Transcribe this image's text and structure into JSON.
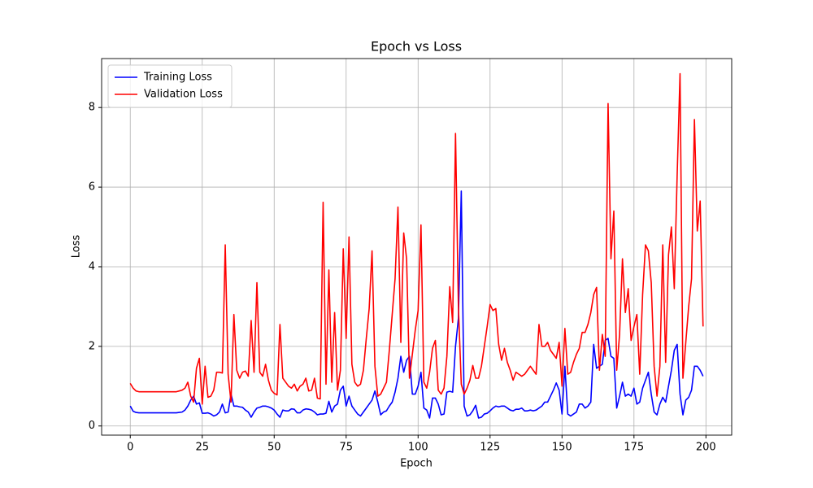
{
  "chart_data": {
    "type": "line",
    "title": "Epoch vs Loss",
    "xlabel": "Epoch",
    "ylabel": "Loss",
    "x": [
      0,
      1,
      2,
      3,
      4,
      5,
      6,
      7,
      8,
      9,
      10,
      11,
      12,
      13,
      14,
      15,
      16,
      17,
      18,
      19,
      20,
      21,
      22,
      23,
      24,
      25,
      26,
      27,
      28,
      29,
      30,
      31,
      32,
      33,
      34,
      35,
      36,
      37,
      38,
      39,
      40,
      41,
      42,
      43,
      44,
      45,
      46,
      47,
      48,
      49,
      50,
      51,
      52,
      53,
      54,
      55,
      56,
      57,
      58,
      59,
      60,
      61,
      62,
      63,
      64,
      65,
      66,
      67,
      68,
      69,
      70,
      71,
      72,
      73,
      74,
      75,
      76,
      77,
      78,
      79,
      80,
      81,
      82,
      83,
      84,
      85,
      86,
      87,
      88,
      89,
      90,
      91,
      92,
      93,
      94,
      95,
      96,
      97,
      98,
      99,
      100,
      101,
      102,
      103,
      104,
      105,
      106,
      107,
      108,
      109,
      110,
      111,
      112,
      113,
      114,
      115,
      116,
      117,
      118,
      119,
      120,
      121,
      122,
      123,
      124,
      125,
      126,
      127,
      128,
      129,
      130,
      131,
      132,
      133,
      134,
      135,
      136,
      137,
      138,
      139,
      140,
      141,
      142,
      143,
      144,
      145,
      146,
      147,
      148,
      149,
      150,
      151,
      152,
      153,
      154,
      155,
      156,
      157,
      158,
      159,
      160,
      161,
      162,
      163,
      164,
      165,
      166,
      167,
      168,
      169,
      170,
      171,
      172,
      173,
      174,
      175,
      176,
      177,
      178,
      179,
      180,
      181,
      182,
      183,
      184,
      185,
      186,
      187,
      188,
      189,
      190,
      191,
      192,
      193,
      194,
      195,
      196,
      197,
      198,
      199
    ],
    "series": [
      {
        "name": "Training Loss",
        "color": "#0000ff",
        "values": [
          0.5,
          0.37,
          0.34,
          0.33,
          0.33,
          0.33,
          0.33,
          0.33,
          0.33,
          0.33,
          0.33,
          0.33,
          0.33,
          0.33,
          0.33,
          0.33,
          0.33,
          0.34,
          0.35,
          0.4,
          0.5,
          0.65,
          0.75,
          0.55,
          0.58,
          0.32,
          0.32,
          0.33,
          0.3,
          0.25,
          0.28,
          0.35,
          0.55,
          0.33,
          0.35,
          0.8,
          0.5,
          0.5,
          0.48,
          0.47,
          0.4,
          0.35,
          0.22,
          0.35,
          0.45,
          0.47,
          0.5,
          0.5,
          0.48,
          0.45,
          0.4,
          0.3,
          0.22,
          0.4,
          0.38,
          0.38,
          0.43,
          0.42,
          0.33,
          0.33,
          0.4,
          0.43,
          0.42,
          0.4,
          0.35,
          0.28,
          0.3,
          0.3,
          0.32,
          0.62,
          0.35,
          0.5,
          0.55,
          0.9,
          1.0,
          0.5,
          0.75,
          0.5,
          0.4,
          0.3,
          0.25,
          0.35,
          0.45,
          0.55,
          0.65,
          0.88,
          0.6,
          0.28,
          0.35,
          0.38,
          0.5,
          0.6,
          0.85,
          1.2,
          1.75,
          1.35,
          1.65,
          1.75,
          0.8,
          0.8,
          1.0,
          1.35,
          0.45,
          0.4,
          0.2,
          0.7,
          0.7,
          0.55,
          0.28,
          0.3,
          0.85,
          0.87,
          0.85,
          2.0,
          2.7,
          5.9,
          0.5,
          0.25,
          0.28,
          0.38,
          0.52,
          0.2,
          0.22,
          0.3,
          0.32,
          0.38,
          0.45,
          0.5,
          0.48,
          0.5,
          0.5,
          0.45,
          0.4,
          0.38,
          0.42,
          0.42,
          0.45,
          0.38,
          0.38,
          0.4,
          0.38,
          0.4,
          0.45,
          0.5,
          0.6,
          0.6,
          0.75,
          0.9,
          1.08,
          0.9,
          0.3,
          1.5,
          0.3,
          0.25,
          0.3,
          0.35,
          0.55,
          0.55,
          0.45,
          0.5,
          0.6,
          2.05,
          1.45,
          1.5,
          1.55,
          2.15,
          2.2,
          1.75,
          1.7,
          0.45,
          0.75,
          1.1,
          0.75,
          0.8,
          0.75,
          0.95,
          0.55,
          0.6,
          0.95,
          1.15,
          1.35,
          0.8,
          0.35,
          0.28,
          0.55,
          0.72,
          0.6,
          1.0,
          1.4,
          1.9,
          2.05,
          0.8,
          0.28,
          0.65,
          0.72,
          0.9,
          1.5,
          1.5,
          1.4,
          1.25
        ]
      },
      {
        "name": "Validation Loss",
        "color": "#ff0000",
        "values": [
          1.07,
          0.95,
          0.88,
          0.86,
          0.86,
          0.86,
          0.86,
          0.86,
          0.86,
          0.86,
          0.86,
          0.86,
          0.86,
          0.86,
          0.86,
          0.86,
          0.86,
          0.88,
          0.9,
          0.95,
          1.1,
          0.75,
          0.6,
          1.45,
          1.7,
          0.55,
          1.5,
          0.72,
          0.75,
          0.9,
          1.35,
          1.35,
          1.33,
          4.55,
          1.3,
          0.6,
          2.8,
          1.4,
          1.2,
          1.35,
          1.38,
          1.25,
          2.65,
          1.35,
          3.6,
          1.35,
          1.25,
          1.55,
          1.15,
          0.9,
          0.82,
          0.78,
          2.55,
          1.2,
          1.1,
          1.0,
          0.95,
          1.05,
          0.88,
          1.0,
          1.05,
          1.2,
          0.88,
          0.9,
          1.2,
          0.7,
          0.68,
          5.62,
          1.05,
          3.92,
          1.1,
          2.85,
          0.9,
          1.4,
          4.45,
          2.2,
          4.75,
          1.55,
          1.1,
          1.0,
          1.05,
          1.4,
          2.2,
          2.95,
          4.4,
          1.5,
          0.75,
          0.8,
          0.95,
          1.1,
          1.9,
          2.8,
          3.7,
          5.5,
          2.1,
          4.85,
          4.2,
          1.2,
          1.8,
          2.4,
          2.9,
          5.05,
          1.1,
          0.95,
          1.35,
          1.95,
          2.15,
          0.9,
          0.8,
          0.95,
          1.75,
          3.5,
          2.6,
          7.35,
          3.0,
          1.05,
          0.8,
          0.95,
          1.15,
          1.52,
          1.2,
          1.2,
          1.5,
          2.0,
          2.5,
          3.05,
          2.9,
          2.95,
          2.05,
          1.65,
          1.95,
          1.6,
          1.4,
          1.15,
          1.35,
          1.3,
          1.25,
          1.3,
          1.4,
          1.5,
          1.4,
          1.3,
          2.55,
          2.0,
          2.0,
          2.1,
          1.9,
          1.8,
          1.7,
          2.1,
          1.0,
          2.45,
          1.3,
          1.35,
          1.6,
          1.8,
          1.95,
          2.35,
          2.35,
          2.55,
          2.85,
          3.3,
          3.48,
          1.4,
          2.3,
          1.75,
          8.1,
          4.2,
          5.4,
          1.4,
          2.3,
          4.2,
          2.85,
          3.45,
          2.15,
          2.5,
          2.8,
          1.3,
          3.3,
          4.55,
          4.4,
          3.6,
          1.5,
          0.75,
          1.5,
          4.55,
          1.6,
          4.3,
          5.0,
          3.45,
          6.3,
          8.85,
          1.2,
          2.1,
          3.0,
          3.7,
          7.7,
          4.9,
          5.65,
          2.5
        ]
      }
    ],
    "xlim": [
      -9.95,
      208.95
    ],
    "xticks": [
      0,
      25,
      50,
      75,
      100,
      125,
      150,
      175,
      200
    ],
    "ylim": [
      -0.23,
      9.23
    ],
    "yticks": [
      0,
      2,
      4,
      6,
      8
    ],
    "grid": true,
    "legend": "upper left"
  }
}
